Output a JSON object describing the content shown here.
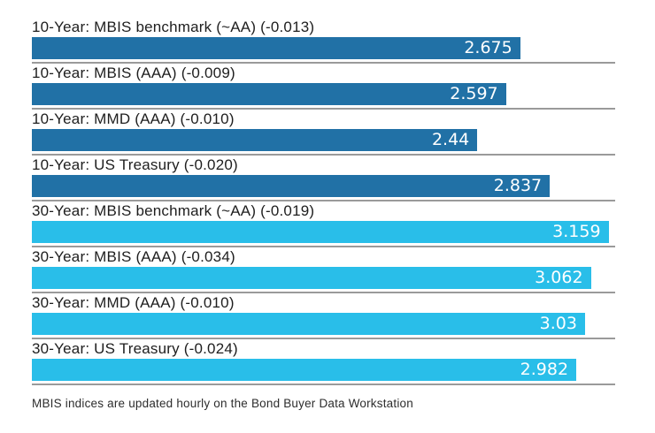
{
  "chart_data": {
    "type": "bar",
    "orientation": "horizontal",
    "title": "",
    "xlabel": "",
    "ylabel": "",
    "axis_max": 3.195,
    "grid": false,
    "legend": "none",
    "bar_colors": {
      "10-year": "#2171A6",
      "30-year": "#29BEE9"
    },
    "value_text_color": "#ffffff",
    "divider_color": "#9A9A9A",
    "rows": [
      {
        "label": "10-Year: MBIS benchmark (~AA) (-0.013)",
        "value": 2.675,
        "value_label": "2.675",
        "group": "10-year"
      },
      {
        "label": "10-Year: MBIS (AAA) (-0.009)",
        "value": 2.597,
        "value_label": "2.597",
        "group": "10-year"
      },
      {
        "label": "10-Year: MMD (AAA) (-0.010)",
        "value": 2.44,
        "value_label": "2.44",
        "group": "10-year"
      },
      {
        "label": "10-Year: US Treasury (-0.020)",
        "value": 2.837,
        "value_label": "2.837",
        "group": "10-year"
      },
      {
        "label": "30-Year: MBIS benchmark (~AA) (-0.019)",
        "value": 3.159,
        "value_label": "3.159",
        "group": "30-year"
      },
      {
        "label": "30-Year: MBIS (AAA) (-0.034)",
        "value": 3.062,
        "value_label": "3.062",
        "group": "30-year"
      },
      {
        "label": "30-Year: MMD (AAA) (-0.010)",
        "value": 3.03,
        "value_label": "3.03",
        "group": "30-year"
      },
      {
        "label": "30-Year: US Treasury (-0.024)",
        "value": 2.982,
        "value_label": "2.982",
        "group": "30-year"
      }
    ],
    "footnote": "MBIS indices are updated hourly on the Bond Buyer Data Workstation"
  }
}
